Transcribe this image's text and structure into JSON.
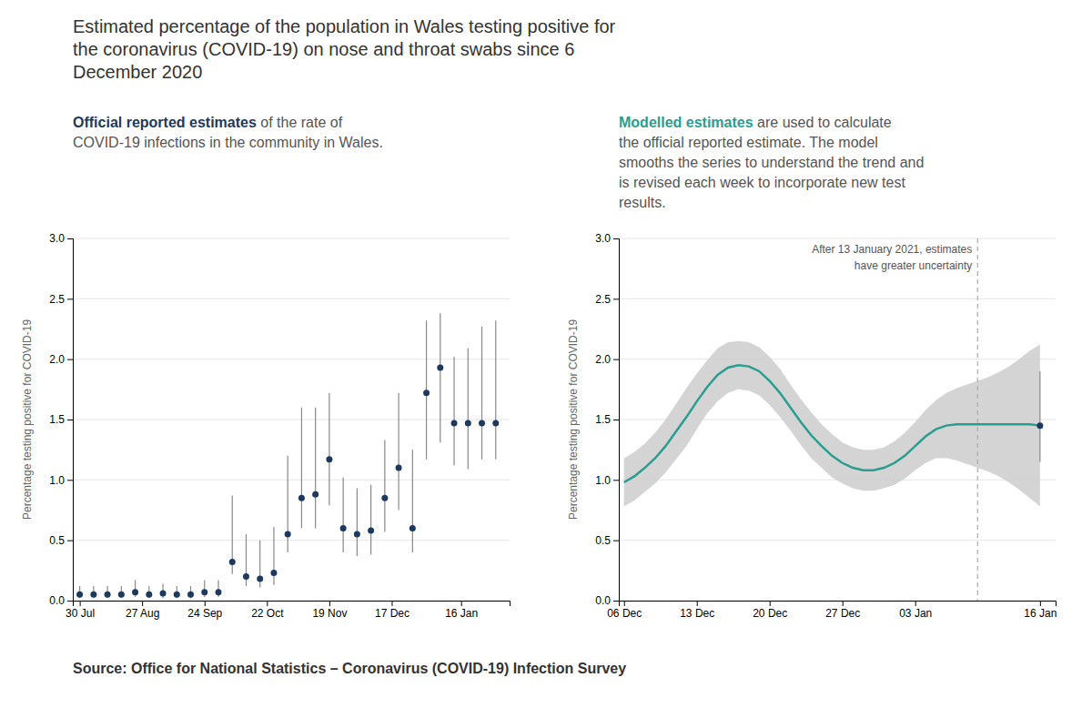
{
  "title": "Estimated percentage of the population in Wales testing positive for\nthe coronavirus (COVID-19) on nose and throat swabs since 6\nDecember 2020",
  "source": "Source: Office for National Statistics – Coronavirus (COVID-19) Infection Survey",
  "chart_data": [
    {
      "type": "scatter",
      "subtitle": [
        "Official reported estimates",
        " of the rate of\nCOVID-19 infections in the community in Wales."
      ],
      "y_label": "Percentage testing positive for COVID-19",
      "x": [
        0,
        1,
        2,
        3,
        4,
        5,
        6,
        7,
        8,
        9,
        10,
        11,
        12,
        13,
        14,
        15,
        16,
        17,
        18,
        19,
        20,
        21,
        22,
        23,
        24,
        25,
        26,
        27,
        28,
        29,
        30
      ],
      "values": [
        0.05,
        0.05,
        0.05,
        0.05,
        0.07,
        0.05,
        0.06,
        0.05,
        0.05,
        0.07,
        0.07,
        0.32,
        0.2,
        0.18,
        0.23,
        0.55,
        0.85,
        0.88,
        1.17,
        0.6,
        0.55,
        0.58,
        0.85,
        1.1,
        0.6,
        1.72,
        1.93,
        1.47,
        1.47,
        1.47,
        1.47
      ],
      "error_low": [
        0.03,
        0.03,
        0.03,
        0.03,
        0.04,
        0.03,
        0.04,
        0.03,
        0.03,
        0.04,
        0.04,
        0.1,
        0.08,
        0.07,
        0.1,
        0.15,
        0.25,
        0.28,
        0.38,
        0.2,
        0.18,
        0.2,
        0.28,
        0.35,
        0.2,
        0.55,
        0.62,
        0.35,
        0.38,
        0.3,
        0.3
      ],
      "error_high": [
        0.07,
        0.07,
        0.07,
        0.07,
        0.1,
        0.07,
        0.08,
        0.07,
        0.07,
        0.1,
        0.1,
        0.55,
        0.35,
        0.32,
        0.38,
        0.65,
        0.75,
        0.72,
        0.55,
        0.42,
        0.38,
        0.38,
        0.48,
        0.62,
        0.65,
        0.6,
        0.45,
        0.55,
        0.62,
        0.8,
        0.85
      ],
      "color": "#1d3a5e",
      "xlim": [
        -0.5,
        31
      ],
      "xticks": [
        {
          "value": 0,
          "label": "30 Jul"
        },
        {
          "value": 4.5,
          "label": "27 Aug"
        },
        {
          "value": 9,
          "label": "24 Sep"
        },
        {
          "value": 13.5,
          "label": "22 Oct"
        },
        {
          "value": 18,
          "label": "19 Nov"
        },
        {
          "value": 22.5,
          "label": "17 Dec"
        },
        {
          "value": 27.5,
          "label": "16 Jan"
        }
      ],
      "ylim": [
        0,
        3.0
      ],
      "yticks": [
        {
          "value": 0.0,
          "label": "0.0"
        },
        0.5,
        {
          "value": 1.0,
          "label": "1.0"
        },
        1.5,
        {
          "value": 2.0,
          "label": "2.0"
        },
        2.5,
        {
          "value": 3.0,
          "label": "3.0"
        }
      ],
      "grid": true
    },
    {
      "type": "line",
      "subtitle": [
        "Modelled estimates",
        " are used to calculate\nthe official reported estimate. The model\nsmooths the series to understand the trend and\nis revised each week to incorporate new test\nresults."
      ],
      "y_label": "Percentage testing positive for COVID-19",
      "x": [
        0,
        1,
        2,
        3,
        4,
        5,
        6,
        7,
        8,
        9,
        10,
        11,
        12,
        13,
        14,
        15,
        16,
        17,
        18,
        19,
        20,
        21,
        22,
        23,
        24,
        25,
        26,
        27,
        28,
        29,
        30,
        31,
        32,
        33,
        34,
        35,
        36,
        37,
        38,
        39,
        40
      ],
      "values": [
        0.98,
        1.03,
        1.1,
        1.18,
        1.28,
        1.4,
        1.52,
        1.65,
        1.77,
        1.87,
        1.93,
        1.95,
        1.94,
        1.9,
        1.82,
        1.72,
        1.6,
        1.48,
        1.37,
        1.28,
        1.2,
        1.14,
        1.1,
        1.08,
        1.08,
        1.1,
        1.14,
        1.2,
        1.28,
        1.36,
        1.42,
        1.45,
        1.46,
        1.46,
        1.46,
        1.46,
        1.46,
        1.46,
        1.46,
        1.46,
        1.45
      ],
      "color": "#2a9d8f",
      "band": {
        "low": [
          0.78,
          0.83,
          0.9,
          0.97,
          1.06,
          1.17,
          1.28,
          1.42,
          1.55,
          1.65,
          1.72,
          1.75,
          1.74,
          1.7,
          1.62,
          1.52,
          1.41,
          1.29,
          1.18,
          1.1,
          1.02,
          0.97,
          0.93,
          0.91,
          0.91,
          0.93,
          0.96,
          1.01,
          1.08,
          1.14,
          1.18,
          1.18,
          1.16,
          1.13,
          1.1,
          1.07,
          1.03,
          0.98,
          0.92,
          0.85,
          0.78
        ],
        "high": [
          1.18,
          1.23,
          1.3,
          1.39,
          1.5,
          1.63,
          1.76,
          1.88,
          1.99,
          2.09,
          2.14,
          2.15,
          2.14,
          2.1,
          2.02,
          1.92,
          1.79,
          1.67,
          1.56,
          1.46,
          1.38,
          1.31,
          1.27,
          1.25,
          1.25,
          1.27,
          1.32,
          1.39,
          1.48,
          1.58,
          1.66,
          1.72,
          1.76,
          1.79,
          1.82,
          1.85,
          1.89,
          1.94,
          2.0,
          2.07,
          2.12
        ],
        "color": "#cccccc"
      },
      "annotations": [
        {
          "x": 34,
          "text": "After 13 January 2021, estimates\nhave greater uncertainty",
          "line_style": "dashed",
          "color": "#aaaaaa"
        }
      ],
      "points": [
        {
          "x": 40,
          "y": 1.45,
          "error_low": 0.3,
          "error_high": 0.45,
          "color": "#1d3a5e"
        }
      ],
      "xlim": [
        -0.5,
        41.5
      ],
      "xticks": [
        {
          "value": 0,
          "label": "06 Dec"
        },
        {
          "value": 7,
          "label": "13 Dec"
        },
        {
          "value": 14,
          "label": "20 Dec"
        },
        {
          "value": 21,
          "label": "27 Dec"
        },
        {
          "value": 28,
          "label": "03 Jan"
        },
        {
          "value": 40,
          "label": "16 Jan"
        }
      ],
      "ylim": [
        0,
        3.0
      ],
      "yticks": [
        {
          "value": 0.0,
          "label": "0.0"
        },
        0.5,
        {
          "value": 1.0,
          "label": "1.0"
        },
        1.5,
        {
          "value": 2.0,
          "label": "2.0"
        },
        2.5,
        {
          "value": 3.0,
          "label": "3.0"
        }
      ],
      "grid": true
    }
  ]
}
